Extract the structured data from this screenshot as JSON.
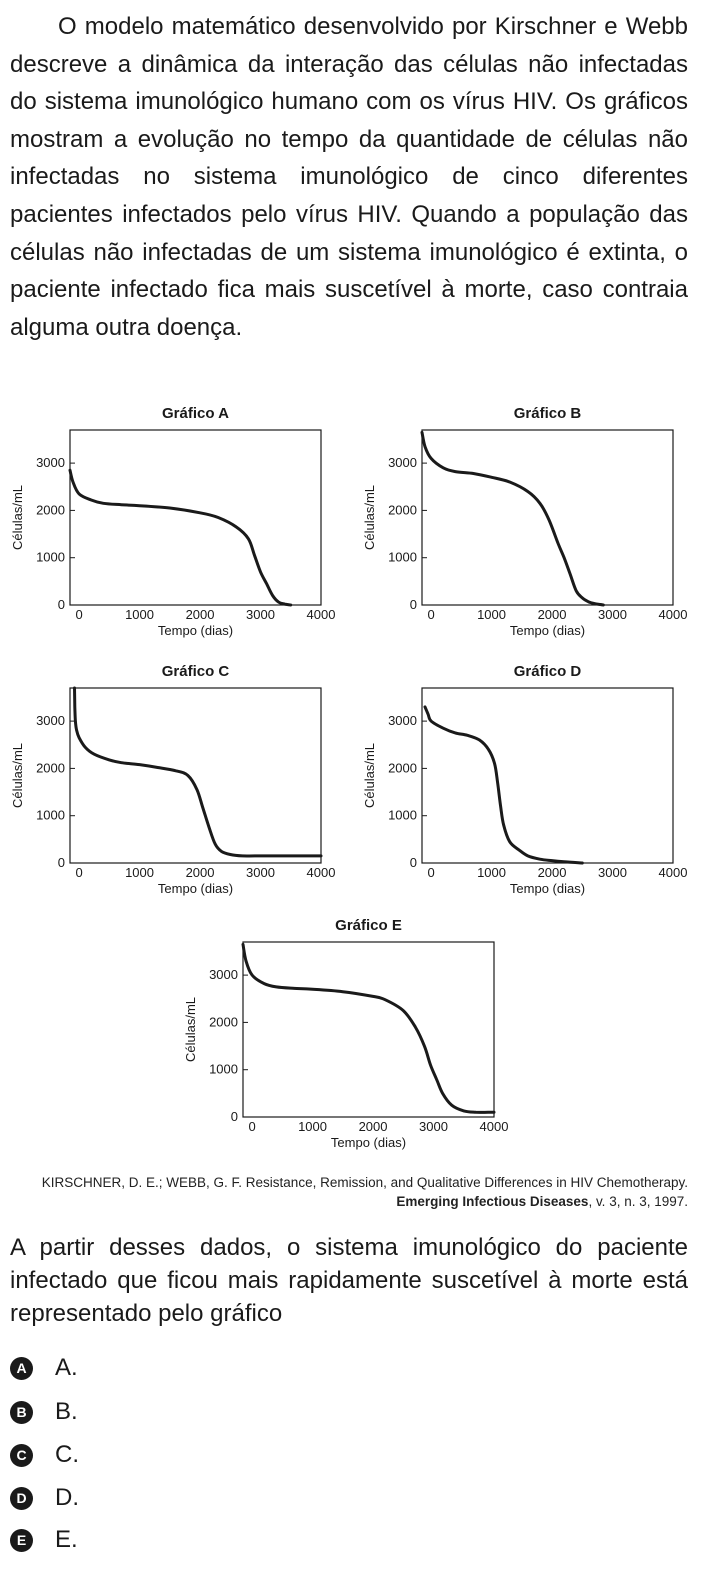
{
  "intro_text": "O modelo matemático desenvolvido por Kirschner e Webb descreve a dinâmica da interação das células não infectadas do sistema imunológico humano com os vírus HIV. Os gráficos mostram a evolução no tempo da quantidade de células não infectadas no sistema imunológico de cinco diferentes pacientes infectados pelo vírus HIV. Quando a população das células não infectadas de um sistema imunológico é extinta, o paciente infectado fica mais suscetível à morte, caso contraia alguma outra doença.",
  "chart_data": [
    {
      "type": "line",
      "title": "Gráfico A",
      "xlabel": "Tempo (dias)",
      "ylabel": "Células/mL",
      "xlim": [
        -150,
        4000
      ],
      "ylim": [
        0,
        3700
      ],
      "x_ticks": [
        "0",
        "1000",
        "2000",
        "3000",
        "4000"
      ],
      "y_ticks": [
        "0",
        "1000",
        "2000",
        "3000"
      ],
      "series": [
        {
          "x": [
            -150,
            -100,
            0,
            200,
            400,
            700,
            1000,
            1500,
            2000,
            2300,
            2600,
            2800,
            2900,
            3000,
            3100,
            3200,
            3300,
            3400,
            3500
          ],
          "y": [
            2850,
            2600,
            2350,
            2220,
            2150,
            2120,
            2100,
            2050,
            1950,
            1850,
            1650,
            1400,
            1050,
            700,
            450,
            200,
            60,
            20,
            0
          ]
        }
      ]
    },
    {
      "type": "line",
      "title": "Gráfico B",
      "xlabel": "Tempo (dias)",
      "ylabel": "Células/mL",
      "xlim": [
        -150,
        4000
      ],
      "ylim": [
        0,
        3700
      ],
      "x_ticks": [
        "0",
        "1000",
        "2000",
        "3000",
        "4000"
      ],
      "y_ticks": [
        "0",
        "1000",
        "2000",
        "3000"
      ],
      "series": [
        {
          "x": [
            -150,
            -100,
            0,
            200,
            400,
            700,
            1000,
            1300,
            1600,
            1800,
            1950,
            2100,
            2200,
            2300,
            2400,
            2500,
            2600,
            2700,
            2800,
            2850
          ],
          "y": [
            3650,
            3350,
            3100,
            2900,
            2820,
            2780,
            2700,
            2600,
            2400,
            2150,
            1800,
            1300,
            1000,
            650,
            300,
            150,
            70,
            30,
            10,
            0
          ]
        }
      ]
    },
    {
      "type": "line",
      "title": "Gráfico C",
      "xlabel": "Tempo (dias)",
      "ylabel": "Células/mL",
      "xlim": [
        -150,
        4000
      ],
      "ylim": [
        0,
        3700
      ],
      "x_ticks": [
        "0",
        "1000",
        "2000",
        "3000",
        "4000"
      ],
      "y_ticks": [
        "0",
        "1000",
        "2000",
        "3000"
      ],
      "series": [
        {
          "x": [
            -75,
            -70,
            -60,
            -40,
            0,
            100,
            250,
            500,
            700,
            1000,
            1300,
            1600,
            1800,
            1950,
            2050,
            2150,
            2250,
            2350,
            2500,
            2700,
            3000,
            4000
          ],
          "y": [
            3700,
            3300,
            3000,
            2800,
            2650,
            2450,
            2300,
            2180,
            2120,
            2080,
            2020,
            1950,
            1850,
            1550,
            1150,
            750,
            400,
            250,
            180,
            150,
            150,
            150
          ]
        }
      ]
    },
    {
      "type": "line",
      "title": "Gráfico D",
      "xlabel": "Tempo (dias)",
      "ylabel": "Células/mL",
      "xlim": [
        -150,
        4000
      ],
      "ylim": [
        0,
        3700
      ],
      "x_ticks": [
        "0",
        "1000",
        "2000",
        "3000",
        "4000"
      ],
      "y_ticks": [
        "0",
        "1000",
        "2000",
        "3000"
      ],
      "series": [
        {
          "x": [
            -100,
            -50,
            0,
            200,
            400,
            600,
            800,
            950,
            1050,
            1100,
            1150,
            1200,
            1300,
            1450,
            1600,
            1800,
            2000,
            2200,
            2500
          ],
          "y": [
            3300,
            3150,
            3000,
            2850,
            2750,
            2700,
            2600,
            2400,
            2100,
            1700,
            1200,
            800,
            450,
            280,
            150,
            80,
            50,
            25,
            0
          ]
        }
      ]
    },
    {
      "type": "line",
      "title": "Gráfico E",
      "xlabel": "Tempo (dias)",
      "ylabel": "Células/mL",
      "xlim": [
        -150,
        4000
      ],
      "ylim": [
        0,
        3700
      ],
      "x_ticks": [
        "0",
        "1000",
        "2000",
        "3000",
        "4000"
      ],
      "y_ticks": [
        "0",
        "1000",
        "2000",
        "3000"
      ],
      "series": [
        {
          "x": [
            -150,
            -100,
            0,
            200,
            400,
            700,
            1000,
            1500,
            2000,
            2200,
            2500,
            2700,
            2850,
            2950,
            3050,
            3150,
            3300,
            3500,
            3700,
            3900,
            4000
          ],
          "y": [
            3650,
            3300,
            3000,
            2820,
            2750,
            2720,
            2700,
            2650,
            2550,
            2480,
            2250,
            1900,
            1500,
            1100,
            800,
            500,
            250,
            130,
            100,
            100,
            100
          ]
        }
      ]
    }
  ],
  "citation": {
    "authors_title": "KIRSCHNER, D. E.; WEBB, G. F. Resistance, Remission, and Qualitative Differences in HIV Chemotherapy.",
    "journal": "Emerging Infectious Diseases",
    "details": ", v. 3, n. 3, 1997."
  },
  "question_text": "A partir desses dados, o sistema imunológico do paciente infectado que ficou mais rapidamente suscetível à morte está representado pelo gráfico",
  "options": [
    {
      "letter": "A",
      "text": "A."
    },
    {
      "letter": "B",
      "text": "B."
    },
    {
      "letter": "C",
      "text": "C."
    },
    {
      "letter": "D",
      "text": "D."
    },
    {
      "letter": "E",
      "text": "E."
    }
  ]
}
